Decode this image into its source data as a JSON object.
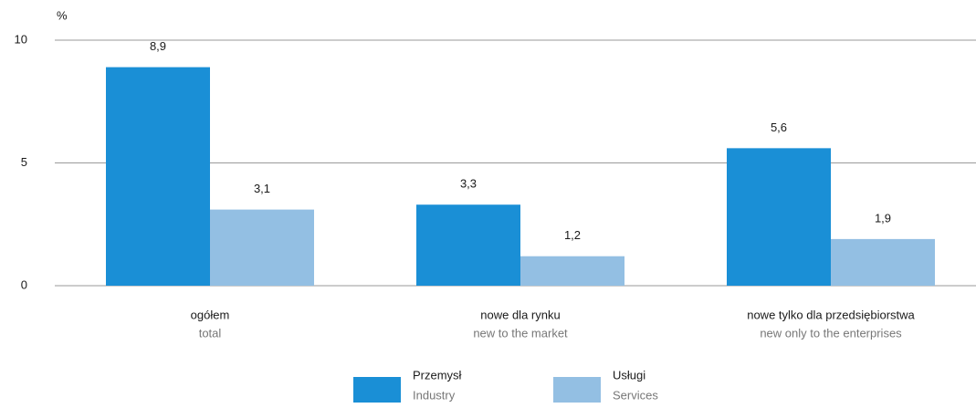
{
  "chart_data": {
    "type": "bar",
    "y_label": "%",
    "categories": [
      "ogółem",
      "nowe dla rynku",
      "nowe tylko dla przedsiębiorstwa"
    ],
    "categories_en": [
      "total",
      "new to the market",
      "new only to the enterprises"
    ],
    "series": [
      {
        "name": "Przemysł",
        "name_en": "Industry",
        "color": "#1a8fd6",
        "values": [
          8.9,
          3.3,
          5.6
        ],
        "value_labels": [
          "8,9",
          "3,3",
          "5,6"
        ]
      },
      {
        "name": "Usługi",
        "name_en": "Services",
        "color": "#93bfe3",
        "values": [
          3.1,
          1.2,
          1.9
        ],
        "value_labels": [
          "3,1",
          "1,2",
          "1,9"
        ]
      }
    ],
    "ylim": [
      0,
      10
    ],
    "yticks": [
      0,
      5,
      10
    ],
    "grid": true
  }
}
